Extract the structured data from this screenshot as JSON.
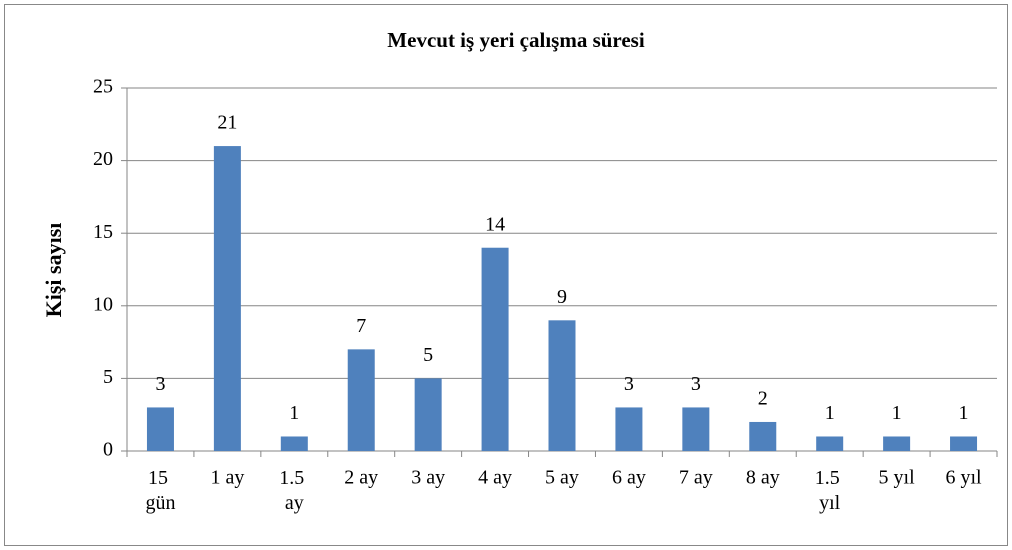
{
  "chart_data": {
    "type": "bar",
    "title": "Mevcut iş yeri çalışma süresi",
    "y_label": "Kişi sayısı",
    "categories": [
      "15 gün",
      "1 ay",
      "1.5 ay",
      "2 ay",
      "3 ay",
      "4 ay",
      "5 ay",
      "6 ay",
      "7 ay",
      "8 ay",
      "1.5 yıl",
      "5 yıl",
      "6 yıl"
    ],
    "values": [
      3,
      21,
      1,
      7,
      5,
      14,
      9,
      3,
      3,
      2,
      1,
      1,
      1
    ],
    "color": "#4f81bd",
    "ylim": [
      0,
      25
    ],
    "yticks": [
      0,
      5,
      10,
      15,
      20,
      25
    ],
    "grid": true
  }
}
